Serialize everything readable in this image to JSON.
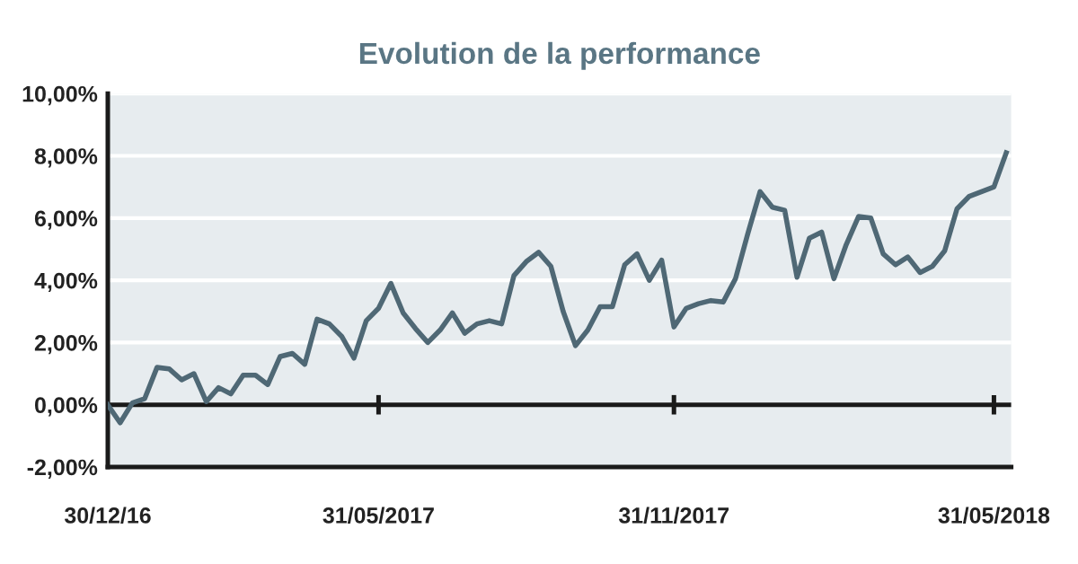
{
  "chart_data": {
    "type": "line",
    "title": "Evolution de la performance",
    "categories": [
      "30/12/16",
      null,
      null,
      null,
      null,
      null,
      null,
      null,
      null,
      null,
      null,
      null,
      null,
      null,
      null,
      null,
      null,
      null,
      null,
      null,
      null,
      null,
      "31/05/2017",
      null,
      null,
      null,
      null,
      null,
      null,
      null,
      null,
      null,
      null,
      null,
      null,
      null,
      null,
      null,
      null,
      null,
      null,
      null,
      null,
      null,
      null,
      null,
      "31/11/2017",
      null,
      null,
      null,
      null,
      null,
      null,
      null,
      null,
      null,
      null,
      null,
      null,
      null,
      null,
      null,
      null,
      null,
      null,
      null,
      null,
      null,
      null,
      null,
      null,
      null,
      "31/05/2018",
      null
    ],
    "series": [
      {
        "color": "#4f6875",
        "values": [
          0,
          -0.58,
          0.06,
          0.2,
          1.2,
          1.15,
          0.8,
          1.0,
          0.1,
          0.55,
          0.35,
          0.95,
          0.95,
          0.65,
          1.55,
          1.65,
          1.3,
          2.75,
          2.6,
          2.2,
          1.5,
          2.7,
          3.1,
          3.9,
          2.95,
          2.45,
          2.0,
          2.4,
          2.95,
          2.3,
          2.6,
          2.7,
          2.6,
          4.15,
          4.6,
          4.9,
          4.45,
          3.0,
          1.9,
          2.4,
          3.15,
          3.15,
          4.5,
          4.85,
          4.0,
          4.65,
          2.5,
          3.1,
          3.25,
          3.35,
          3.3,
          4.05,
          5.5,
          6.85,
          6.35,
          6.25,
          4.1,
          5.35,
          5.55,
          4.05,
          5.15,
          6.05,
          6.0,
          4.85,
          4.5,
          4.75,
          4.25,
          4.45,
          4.95,
          6.3,
          6.7,
          6.85,
          7.0,
          8.1
        ]
      }
    ],
    "ylim": [
      -2,
      10
    ],
    "yticks": [
      {
        "value": -2,
        "label": "-2,00%"
      },
      {
        "value": 0,
        "label": "0,00%"
      },
      {
        "value": 2,
        "label": "2,00%"
      },
      {
        "value": 4,
        "label": "4,00%"
      },
      {
        "value": 6,
        "label": "6,00%"
      },
      {
        "value": 8,
        "label": "8,00%"
      },
      {
        "value": 10,
        "label": "10,00%"
      }
    ],
    "ref_lines": [
      {
        "axis": "y",
        "value": 0,
        "color": "#1a1a1a"
      }
    ],
    "grid": "y",
    "marker": "none",
    "line_style": "solid",
    "legend": false
  }
}
